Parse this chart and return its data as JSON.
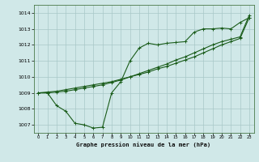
{
  "background_color": "#d0e8e8",
  "grid_color": "#a8c8c8",
  "line_color": "#1a5c1a",
  "title": "Graphe pression niveau de la mer (hPa)",
  "xlim": [
    -0.5,
    23.5
  ],
  "ylim": [
    1006.5,
    1014.5
  ],
  "yticks": [
    1007,
    1008,
    1009,
    1010,
    1011,
    1012,
    1013,
    1014
  ],
  "xticks": [
    0,
    1,
    2,
    3,
    4,
    5,
    6,
    7,
    8,
    9,
    10,
    11,
    12,
    13,
    14,
    15,
    16,
    17,
    18,
    19,
    20,
    21,
    22,
    23
  ],
  "line1_x": [
    0,
    1,
    2,
    3,
    4,
    5,
    6,
    7,
    8,
    9,
    10,
    11,
    12,
    13,
    14,
    15,
    16,
    17,
    18,
    19,
    20,
    21,
    22,
    23
  ],
  "line1_y": [
    1009.0,
    1009.0,
    1008.2,
    1007.85,
    1007.1,
    1007.0,
    1006.8,
    1006.85,
    1009.0,
    1009.7,
    1011.0,
    1011.8,
    1012.1,
    1012.0,
    1012.1,
    1012.15,
    1012.2,
    1012.8,
    1013.0,
    1013.0,
    1013.05,
    1013.0,
    1013.4,
    1013.7
  ],
  "line2_x": [
    0,
    1,
    2,
    3,
    4,
    5,
    6,
    7,
    8,
    9,
    10,
    11,
    12,
    13,
    14,
    15,
    16,
    17,
    18,
    19,
    20,
    21,
    22,
    23
  ],
  "line2_y": [
    1009.0,
    1009.05,
    1009.1,
    1009.2,
    1009.3,
    1009.4,
    1009.5,
    1009.6,
    1009.7,
    1009.85,
    1010.0,
    1010.15,
    1010.3,
    1010.5,
    1010.65,
    1010.85,
    1011.05,
    1011.25,
    1011.5,
    1011.75,
    1012.0,
    1012.2,
    1012.4,
    1013.7
  ],
  "line3_x": [
    0,
    1,
    2,
    3,
    4,
    5,
    6,
    7,
    8,
    9,
    10,
    11,
    12,
    13,
    14,
    15,
    16,
    17,
    18,
    19,
    20,
    21,
    22,
    23
  ],
  "line3_y": [
    1009.0,
    1009.0,
    1009.05,
    1009.1,
    1009.2,
    1009.3,
    1009.4,
    1009.5,
    1009.65,
    1009.8,
    1010.0,
    1010.2,
    1010.4,
    1010.6,
    1010.8,
    1011.05,
    1011.25,
    1011.5,
    1011.75,
    1012.0,
    1012.2,
    1012.35,
    1012.5,
    1013.85
  ]
}
